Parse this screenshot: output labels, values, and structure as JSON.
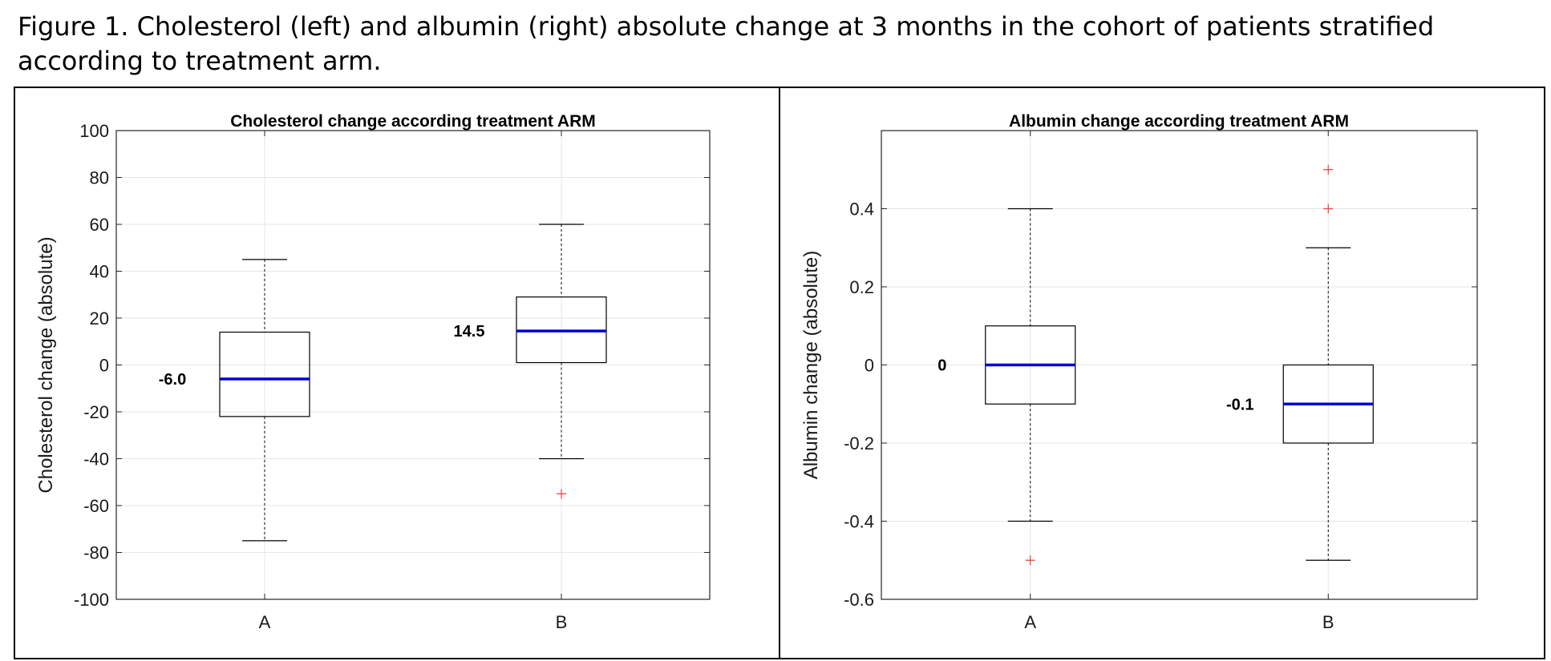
{
  "caption": "Figure 1. Cholesterol (left) and albumin (right) absolute change at 3 months in the cohort of patients stratified according to treatment arm.",
  "colors": {
    "median": "#0000d6",
    "outlier": "#e8413c",
    "box": "#000000",
    "grid": "#e6e6e6",
    "axis": "#262626"
  },
  "chart_data": [
    {
      "type": "boxplot",
      "title": "Cholesterol change according treatment ARM",
      "xlabel": "",
      "ylabel": "Cholesterol change (absolute)",
      "ylim": [
        -100,
        100
      ],
      "yticks": [
        100,
        80,
        60,
        40,
        20,
        0,
        -20,
        -40,
        -60,
        -80,
        -100
      ],
      "grid": true,
      "categories": [
        "A",
        "B"
      ],
      "boxes": [
        {
          "category": "A",
          "whisker_low": -75,
          "q1": -22,
          "median": -6,
          "q3": 14,
          "whisker_high": 45,
          "outliers": [],
          "median_label": "-6.0"
        },
        {
          "category": "B",
          "whisker_low": -40,
          "q1": 1,
          "median": 14.5,
          "q3": 29,
          "whisker_high": 60,
          "outliers": [
            -55
          ],
          "median_label": "14.5"
        }
      ]
    },
    {
      "type": "boxplot",
      "title": "Albumin change according treatment ARM",
      "xlabel": "",
      "ylabel": "Albumin change (absolute)",
      "ylim": [
        -0.6,
        0.6
      ],
      "yticks": [
        0.4,
        0.2,
        0,
        -0.2,
        -0.4,
        -0.6
      ],
      "grid": true,
      "categories": [
        "A",
        "B"
      ],
      "boxes": [
        {
          "category": "A",
          "whisker_low": -0.4,
          "q1": -0.1,
          "median": 0,
          "q3": 0.1,
          "whisker_high": 0.4,
          "outliers": [
            -0.5
          ],
          "median_label": "0"
        },
        {
          "category": "B",
          "whisker_low": -0.5,
          "q1": -0.2,
          "median": -0.1,
          "q3": 0,
          "whisker_high": 0.3,
          "outliers": [
            0.4,
            0.5
          ],
          "median_label": "-0.1"
        }
      ]
    }
  ]
}
